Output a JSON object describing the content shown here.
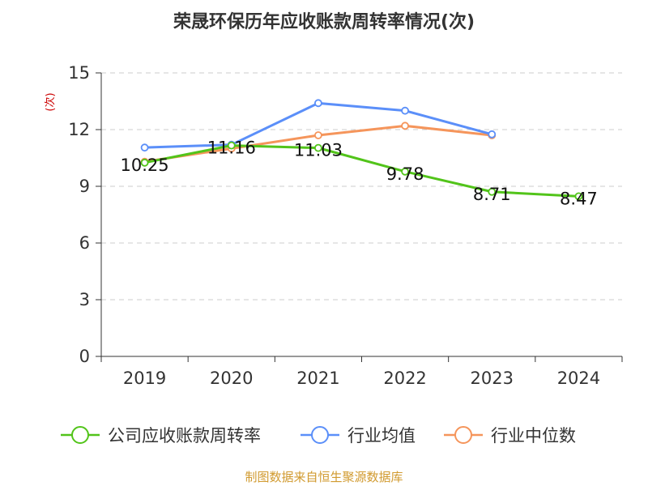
{
  "chart_data": {
    "type": "line",
    "title": "荣晟环保历年应收账款周转率情况(次)",
    "ylabel": "(次)",
    "categories": [
      "2019",
      "2020",
      "2021",
      "2022",
      "2023",
      "2024"
    ],
    "ylim": [
      0,
      15
    ],
    "yticks": [
      0,
      3,
      6,
      9,
      12,
      15
    ],
    "grid": true,
    "legend_position": "bottom",
    "series": [
      {
        "name": "公司应收账款周转率",
        "color": "#52c41a",
        "values": [
          10.25,
          11.16,
          11.03,
          9.78,
          8.71,
          8.47
        ],
        "labels": [
          "10.25",
          "11.16",
          "11.03",
          "9.78",
          "8.71",
          "8.47"
        ]
      },
      {
        "name": "行业均值",
        "color": "#5b8ff9",
        "values": [
          11.05,
          11.2,
          13.4,
          13.0,
          11.75,
          null
        ]
      },
      {
        "name": "行业中位数",
        "color": "#f5955b",
        "values": [
          10.3,
          11.0,
          11.7,
          12.2,
          11.7,
          null
        ]
      }
    ],
    "source": "制图数据来自恒生聚源数据库"
  }
}
